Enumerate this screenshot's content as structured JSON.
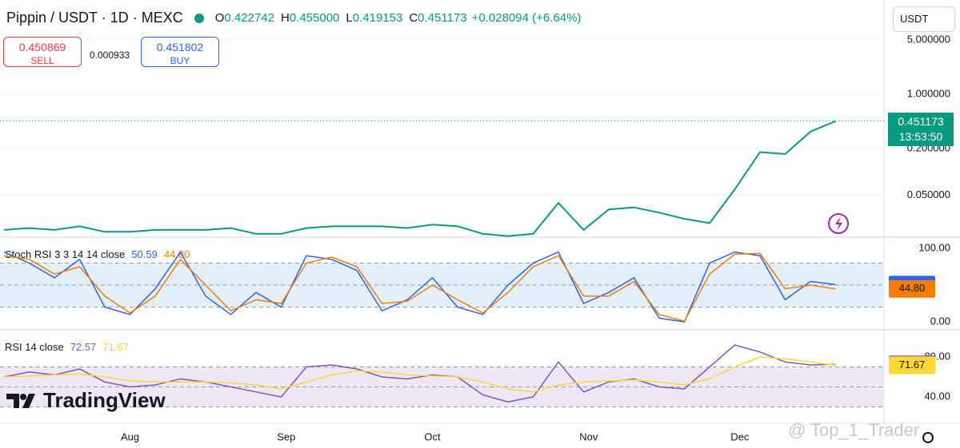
{
  "header": {
    "symbol": "Pippin / USDT · 1D · MEXC",
    "ohlc": [
      {
        "key": "O",
        "value": "0.422742"
      },
      {
        "key": "H",
        "value": "0.455000"
      },
      {
        "key": "L",
        "value": "0.419153"
      },
      {
        "key": "C",
        "value": "0.451173"
      }
    ],
    "change": "+0.028094 (+6.64%)"
  },
  "trade": {
    "sell_price": "0.450869",
    "sell": "SELL",
    "spread": "0.000933",
    "buy_price": "0.451802",
    "buy": "BUY"
  },
  "currency": "USDT",
  "price_label": "0.451173",
  "countdown": "13:53:50",
  "logo": "TradingView",
  "watermark": "@ Top_1_Trader",
  "time": {
    "x": [
      0,
      5,
      10,
      15,
      20,
      25,
      30,
      35,
      40,
      45,
      50,
      55,
      60,
      65,
      70,
      75,
      80,
      85,
      90,
      95,
      100,
      105,
      110,
      115,
      120,
      125,
      130,
      135,
      140,
      145,
      150,
      155,
      160,
      165
    ],
    "xlim": [
      -0.8,
      174.6
    ],
    "xticks": [
      {
        "value": 25,
        "label": "Aug"
      },
      {
        "value": 56,
        "label": "Sep"
      },
      {
        "value": 85,
        "label": "Oct"
      },
      {
        "value": 116,
        "label": "Nov"
      },
      {
        "value": 146,
        "label": "Dec"
      }
    ]
  },
  "chart_data": [
    {
      "type": "line",
      "log_scale": true,
      "ylim": [
        0.0145,
        16.3
      ],
      "yticks": [
        {
          "value": 5,
          "label": "5.000000"
        },
        {
          "value": 1,
          "label": "1.000000"
        },
        {
          "value": 0.2,
          "label": "0.200000"
        },
        {
          "value": 0.05,
          "label": "0.050000"
        }
      ],
      "grid": true,
      "series": [
        {
          "color": "#089981",
          "values": [
            0.018,
            0.019,
            0.018,
            0.02,
            0.017,
            0.017,
            0.018,
            0.018,
            0.018,
            0.019,
            0.016,
            0.016,
            0.019,
            0.02,
            0.02,
            0.02,
            0.019,
            0.021,
            0.02,
            0.016,
            0.015,
            0.016,
            0.04,
            0.018,
            0.033,
            0.035,
            0.03,
            0.025,
            0.022,
            0.06,
            0.18,
            0.17,
            0.33,
            0.451173
          ]
        }
      ]
    },
    {
      "type": "line",
      "title": "Stoch RSI 3 3 14 14 close",
      "ylim": [
        -10.9,
        115.2
      ],
      "yticks": [
        {
          "value": 100,
          "label": "100.00"
        },
        {
          "value": 0,
          "label": "0.00"
        }
      ],
      "levels": [
        20,
        50,
        80
      ],
      "band_color": "#e3f0fc",
      "series": [
        {
          "color": "#2962ff",
          "values": [
            95,
            80,
            60,
            85,
            20,
            10,
            45,
            95,
            35,
            10,
            40,
            20,
            90,
            85,
            70,
            15,
            30,
            60,
            20,
            10,
            50,
            80,
            95,
            25,
            40,
            60,
            5,
            0,
            80,
            95,
            90,
            30,
            55,
            50.59
          ],
          "value_labels": [
            "50.59"
          ]
        },
        {
          "color": "#f57c00",
          "values": [
            90,
            85,
            65,
            75,
            35,
            12,
            35,
            85,
            50,
            15,
            30,
            25,
            80,
            88,
            75,
            25,
            28,
            50,
            30,
            12,
            40,
            75,
            90,
            35,
            35,
            55,
            10,
            1,
            65,
            92,
            93,
            45,
            50,
            44.8
          ],
          "value_labels": [
            "44.80"
          ]
        }
      ]
    },
    {
      "type": "line",
      "title": "RSI 14 close",
      "ylim": [
        13.6,
        107.2
      ],
      "yticks": [
        {
          "value": 80,
          "label": "80.00"
        },
        {
          "value": 40,
          "label": "40.00"
        }
      ],
      "levels": [
        30,
        50,
        70
      ],
      "band_color": "#ede7f6",
      "series": [
        {
          "color": "#7e57c2",
          "values": [
            60,
            65,
            62,
            68,
            55,
            50,
            52,
            58,
            55,
            50,
            45,
            40,
            70,
            72,
            68,
            60,
            58,
            62,
            60,
            42,
            35,
            40,
            75,
            45,
            55,
            58,
            50,
            48,
            70,
            92,
            85,
            75,
            72,
            72.57
          ],
          "value_labels": [
            "72.57"
          ]
        },
        {
          "color": "#fdd835",
          "values": [
            60,
            61,
            62,
            63,
            60,
            56,
            55,
            55,
            55,
            54,
            52,
            48,
            55,
            62,
            66,
            65,
            62,
            61,
            60,
            55,
            48,
            45,
            52,
            55,
            56,
            57,
            55,
            52,
            58,
            70,
            80,
            78,
            75,
            71.67
          ],
          "value_labels": [
            "71.67"
          ]
        }
      ]
    }
  ]
}
